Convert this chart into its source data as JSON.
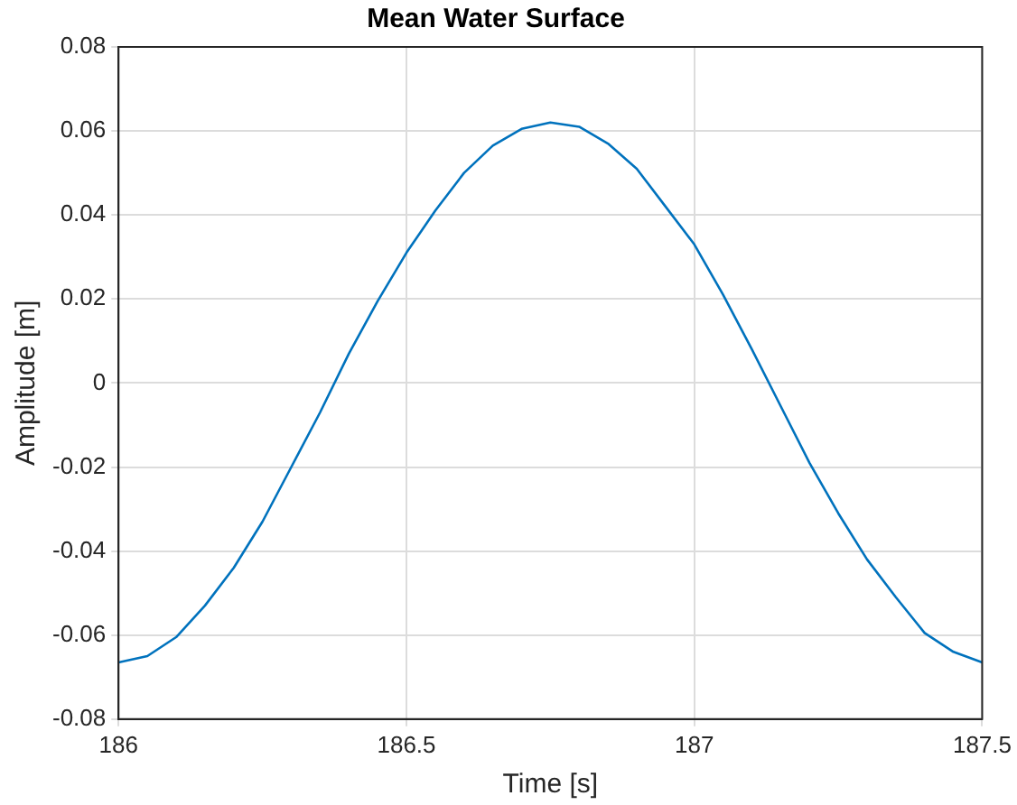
{
  "chart_data": {
    "type": "line",
    "title": "Mean Water Surface",
    "xlabel": "Time [s]",
    "ylabel": "Amplitude [m]",
    "x": [
      186,
      186.05,
      186.1,
      186.15,
      186.2,
      186.25,
      186.3,
      186.35,
      186.4,
      186.45,
      186.5,
      186.55,
      186.6,
      186.65,
      186.7,
      186.75,
      186.8,
      186.85,
      186.9,
      186.95,
      187,
      187.05,
      187.1,
      187.15,
      187.2,
      187.25,
      187.3,
      187.35,
      187.4,
      187.45,
      187.5
    ],
    "series": [
      {
        "color": "#0072bd",
        "values": [
          -0.0665,
          -0.065,
          -0.0605,
          -0.053,
          -0.044,
          -0.033,
          -0.02,
          -0.007,
          0.007,
          0.0195,
          0.031,
          0.041,
          0.05,
          0.0565,
          0.0605,
          0.062,
          0.061,
          0.057,
          0.051,
          0.042,
          0.033,
          0.021,
          0.008,
          -0.0055,
          -0.019,
          -0.031,
          -0.042,
          -0.051,
          -0.0595,
          -0.064,
          -0.0665
        ]
      }
    ],
    "xlim": [
      186,
      187.5
    ],
    "xticks": [
      186,
      186.5,
      187,
      187.5
    ],
    "ylim": [
      -0.08,
      0.08
    ],
    "yticks": [
      -0.08,
      -0.06,
      -0.04,
      -0.02,
      0,
      0.02,
      0.04,
      0.06,
      0.08
    ],
    "grid": true,
    "legend": false,
    "marker": "none",
    "line_style": "solid"
  }
}
